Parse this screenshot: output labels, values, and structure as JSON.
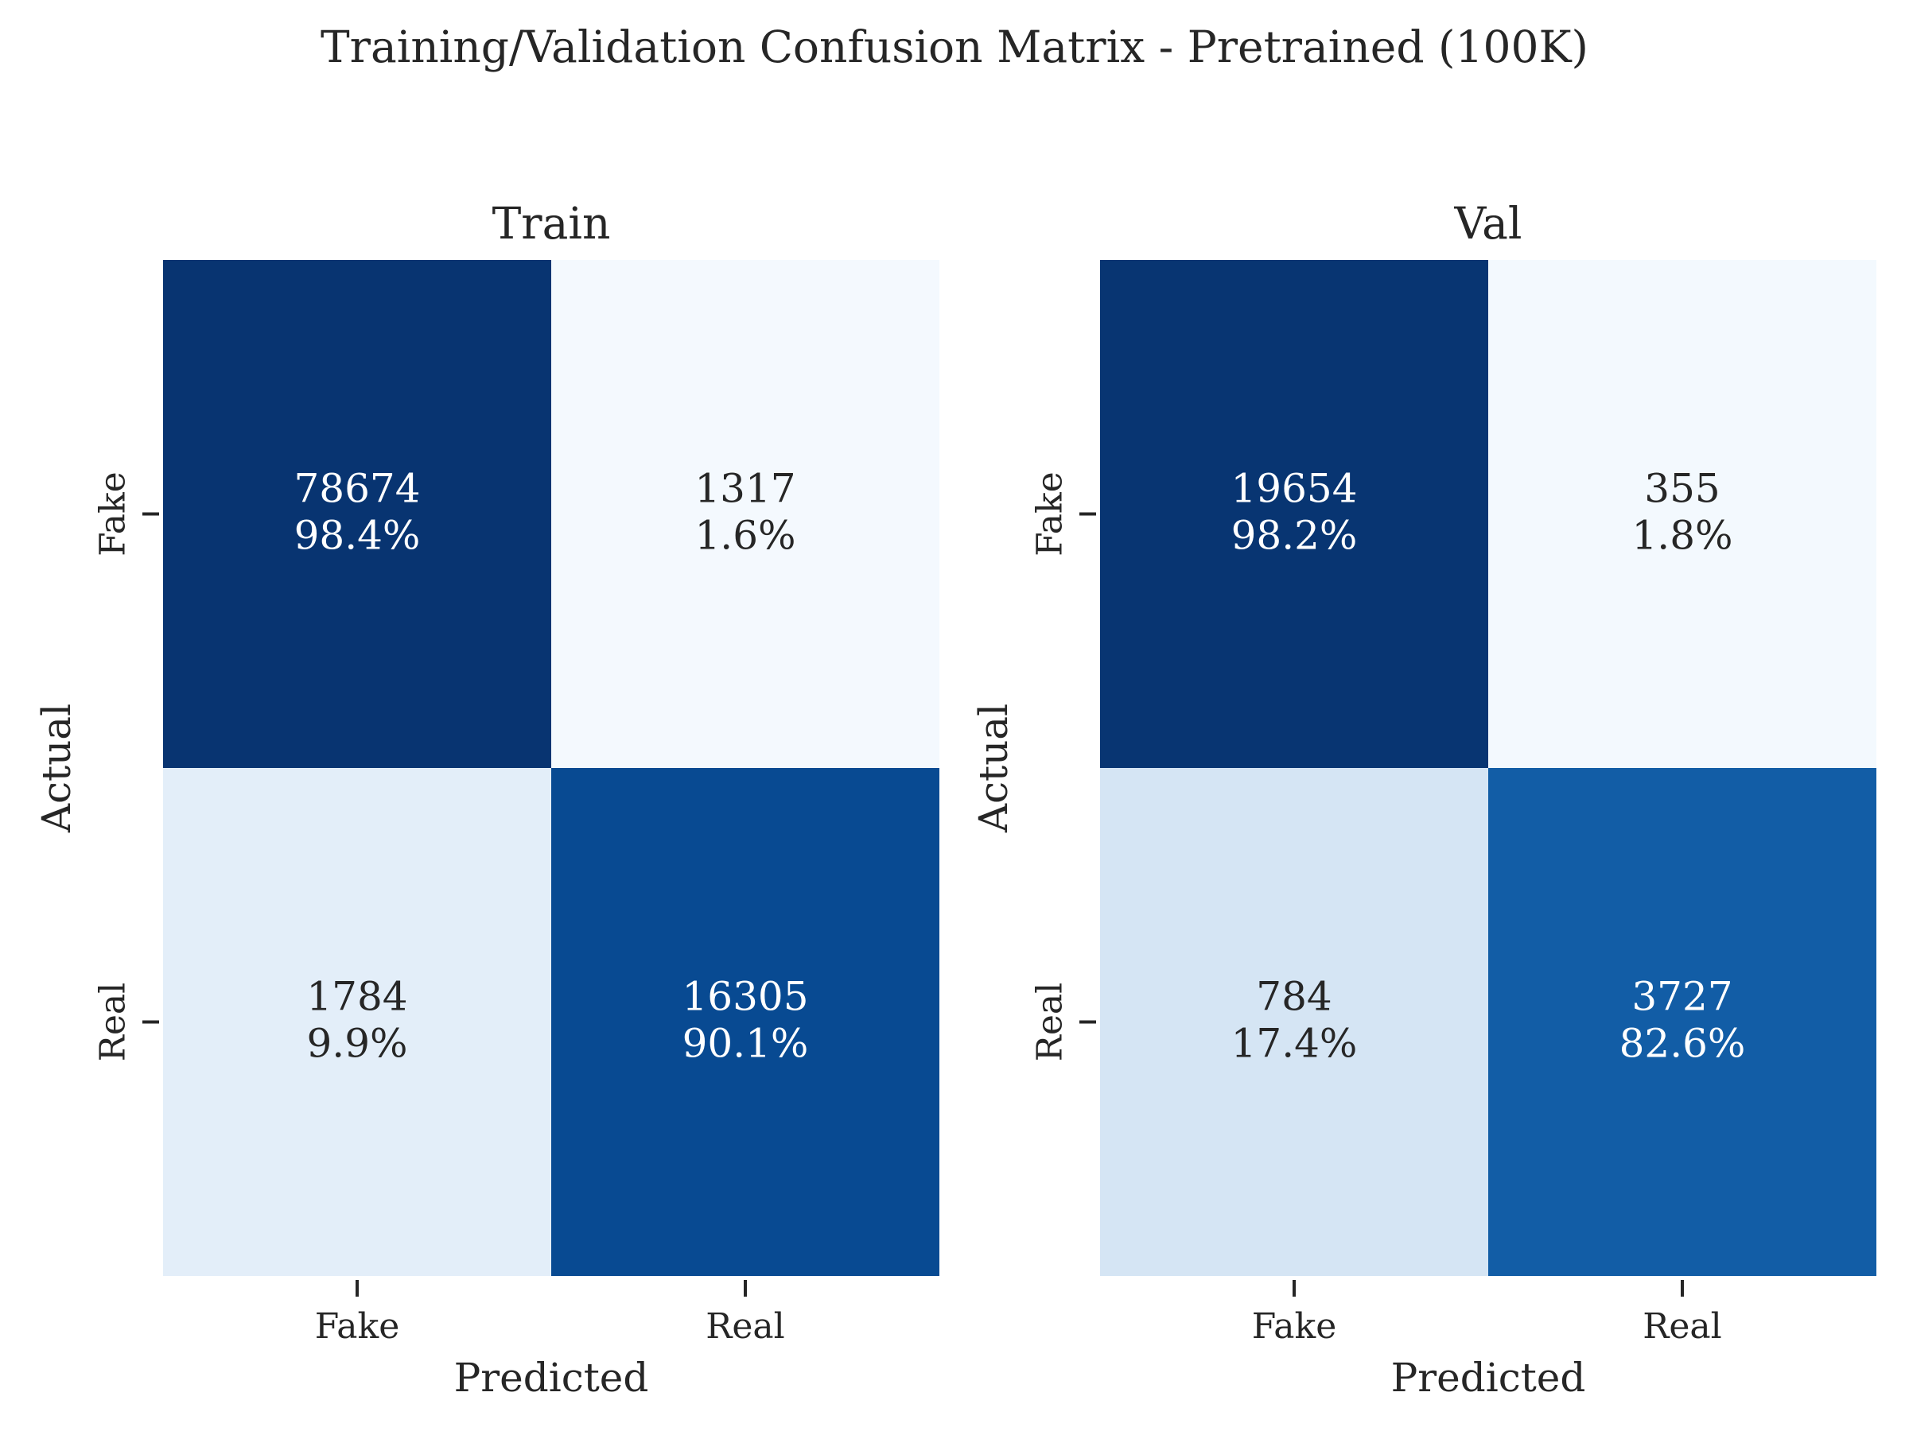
{
  "title": "Training/Validation Confusion Matrix - Pretrained (100K)",
  "chart_data": [
    {
      "type": "heatmap",
      "title": "Train",
      "xlabel": "Predicted",
      "ylabel": "Actual",
      "x_categories": [
        "Fake",
        "Real"
      ],
      "y_categories": [
        "Fake",
        "Real"
      ],
      "values": [
        [
          78674,
          1317
        ],
        [
          1784,
          16305
        ]
      ],
      "percentages": [
        [
          "98.4%",
          "1.6%"
        ],
        [
          "9.9%",
          "90.1%"
        ]
      ],
      "colormap": "Blues",
      "colorbar": false,
      "grid": false
    },
    {
      "type": "heatmap",
      "title": "Val",
      "xlabel": "Predicted",
      "ylabel": "Actual",
      "x_categories": [
        "Fake",
        "Real"
      ],
      "y_categories": [
        "Fake",
        "Real"
      ],
      "values": [
        [
          19654,
          355
        ],
        [
          784,
          3727
        ]
      ],
      "percentages": [
        [
          "98.2%",
          "1.8%"
        ],
        [
          "17.4%",
          "82.6%"
        ]
      ],
      "colormap": "Blues",
      "colorbar": false,
      "grid": false
    }
  ]
}
